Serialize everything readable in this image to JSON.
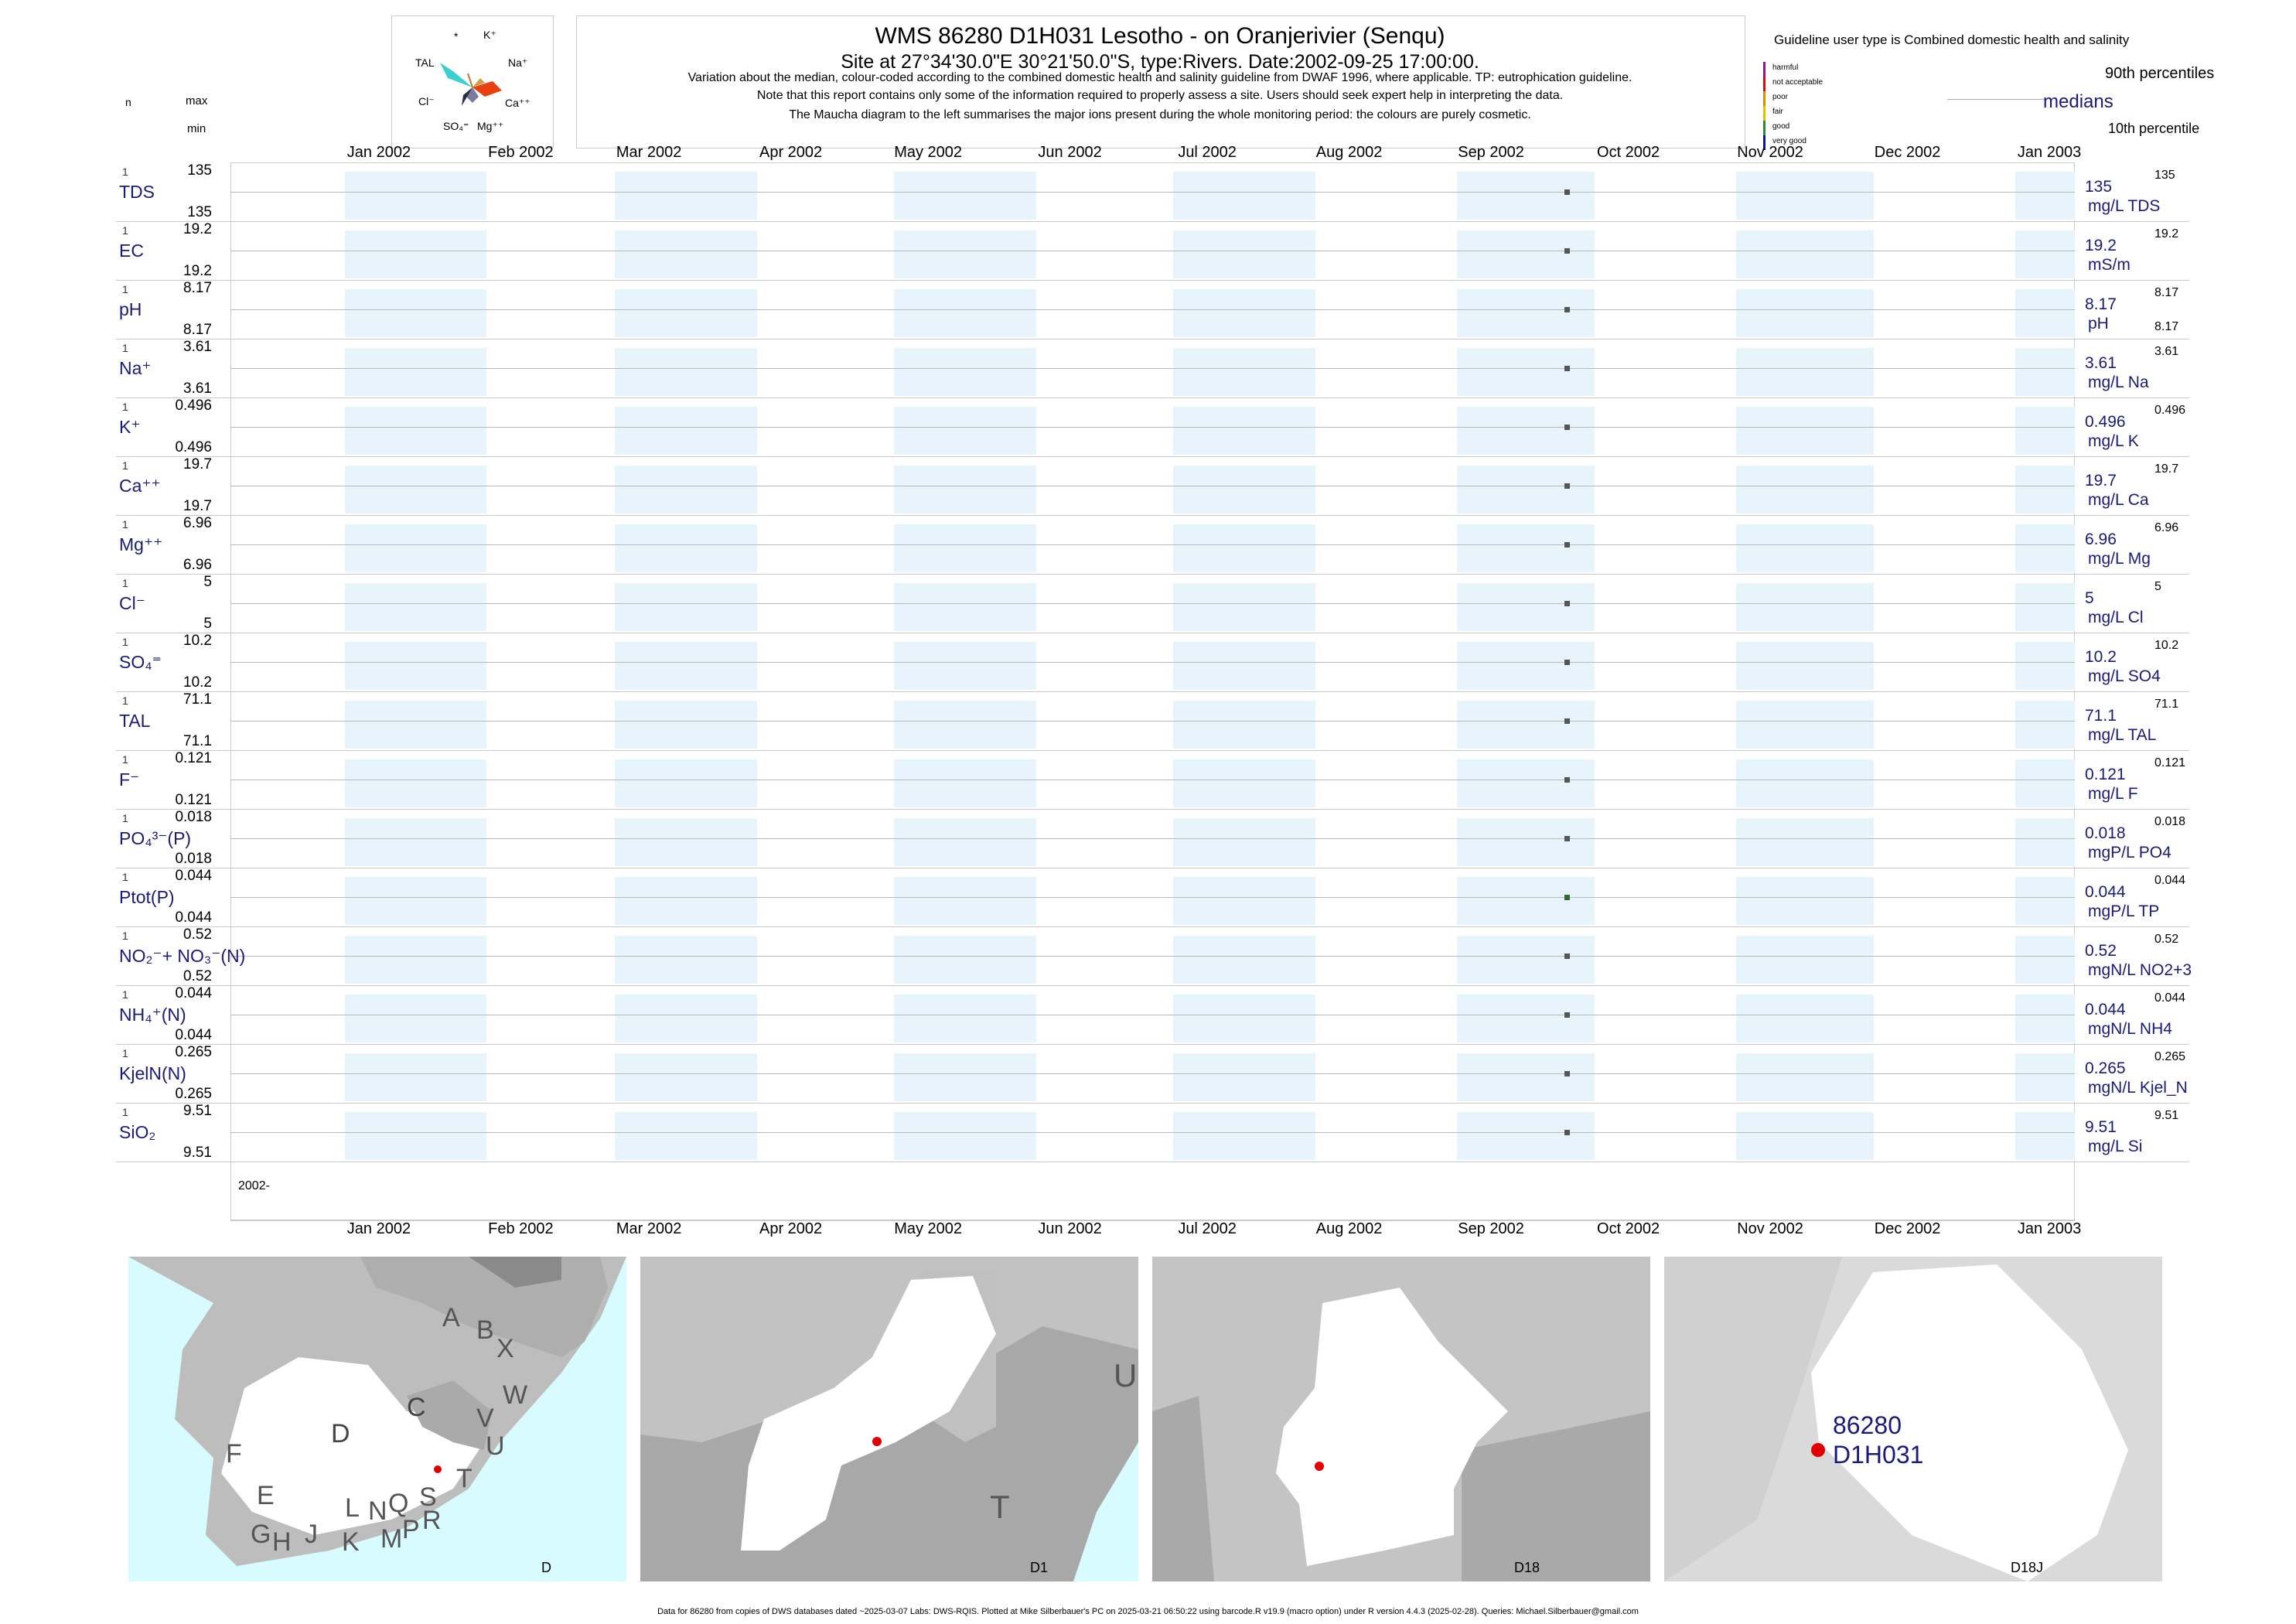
{
  "header": {
    "title": "WMS 86280 D1H031 Lesotho - on Oranjerivier (Senqu)",
    "subtitle": "Site at 27°34'30.0\"E 30°21'50.0\"S, type:Rivers. Date:2002-09-25 17:00:00.",
    "note1": "Variation about the median,  colour-coded according to the combined domestic health and salinity guideline from DWAF 1996, where applicable. TP: eutrophication guideline.",
    "note2": "Note that this report contains only some of the information required to properly assess a site. Users should seek expert help in interpreting the data.",
    "note3": "The Maucha diagram to the left summarises the major ions present during the whole monitoring period: the colours are purely cosmetic."
  },
  "maucha": {
    "labels": [
      "*",
      "K⁺",
      "TAL",
      "Na⁺",
      "Cl⁻",
      "Ca⁺⁺",
      "SO₄⁼",
      "Mg⁺⁺"
    ]
  },
  "left_header": {
    "n": "n",
    "max": "max",
    "min": "min"
  },
  "legend": {
    "guideline_title": "Guideline user type is Combined domestic health and salinity",
    "levels": [
      "harmful",
      "not acceptable",
      "poor",
      "fair",
      "good",
      "very good"
    ],
    "level_colors": [
      "#8b1a8b",
      "#d01010",
      "#e08a00",
      "#e6c000",
      "#2e8b2e",
      "#1010a0"
    ],
    "p90": "90th percentiles",
    "medians": "medians",
    "p10": "10th percentile"
  },
  "axis": {
    "months": [
      "Jan 2002",
      "Feb 2002",
      "Mar 2002",
      "Apr 2002",
      "May 2002",
      "Jun 2002",
      "Jul 2002",
      "Aug 2002",
      "Sep 2002",
      "Oct 2002",
      "Nov 2002",
      "Dec 2002",
      "Jan 2003"
    ],
    "year_label": "2002-"
  },
  "chart_data": {
    "type": "scatter",
    "x_dates": [
      "2002-09-25"
    ],
    "series": [
      {
        "name": "TDS",
        "label": "TDS",
        "n": "1",
        "max": "135",
        "min": "135",
        "median": "135",
        "unit": "mg/L TDS",
        "p90": "135",
        "p10": "",
        "color": "#555555"
      },
      {
        "name": "EC",
        "label": "EC",
        "n": "1",
        "max": "19.2",
        "min": "19.2",
        "median": "19.2",
        "unit": "mS/m",
        "p90": "19.2",
        "p10": "",
        "color": "#555555"
      },
      {
        "name": "pH",
        "label": "pH",
        "n": "1",
        "max": "8.17",
        "min": "8.17",
        "median": "8.17",
        "unit": "pH",
        "p90": "8.17",
        "p10": "8.17",
        "color": "#555555"
      },
      {
        "name": "Na",
        "label": "Na⁺",
        "n": "1",
        "max": "3.61",
        "min": "3.61",
        "median": "3.61",
        "unit": "mg/L Na",
        "p90": "3.61",
        "p10": "",
        "color": "#555555"
      },
      {
        "name": "K",
        "label": "K⁺",
        "n": "1",
        "max": "0.496",
        "min": "0.496",
        "median": "0.496",
        "unit": "mg/L K",
        "p90": "0.496",
        "p10": "",
        "color": "#555555"
      },
      {
        "name": "Ca",
        "label": "Ca⁺⁺",
        "n": "1",
        "max": "19.7",
        "min": "19.7",
        "median": "19.7",
        "unit": "mg/L Ca",
        "p90": "19.7",
        "p10": "",
        "color": "#555555"
      },
      {
        "name": "Mg",
        "label": "Mg⁺⁺",
        "n": "1",
        "max": "6.96",
        "min": "6.96",
        "median": "6.96",
        "unit": "mg/L Mg",
        "p90": "6.96",
        "p10": "",
        "color": "#555555"
      },
      {
        "name": "Cl",
        "label": "Cl⁻",
        "n": "1",
        "max": "5",
        "min": "5",
        "median": "5",
        "unit": "mg/L Cl",
        "p90": "5",
        "p10": "",
        "color": "#555555"
      },
      {
        "name": "SO4",
        "label": "SO₄⁼",
        "n": "1",
        "max": "10.2",
        "min": "10.2",
        "median": "10.2",
        "unit": "mg/L SO4",
        "p90": "10.2",
        "p10": "",
        "color": "#555555"
      },
      {
        "name": "TAL",
        "label": "TAL",
        "n": "1",
        "max": "71.1",
        "min": "71.1",
        "median": "71.1",
        "unit": "mg/L TAL",
        "p90": "71.1",
        "p10": "",
        "color": "#555555"
      },
      {
        "name": "F",
        "label": "F⁻",
        "n": "1",
        "max": "0.121",
        "min": "0.121",
        "median": "0.121",
        "unit": "mg/L F",
        "p90": "0.121",
        "p10": "",
        "color": "#555555"
      },
      {
        "name": "PO4",
        "label": "PO₄³⁻(P)",
        "n": "1",
        "max": "0.018",
        "min": "0.018",
        "median": "0.018",
        "unit": "mgP/L PO4",
        "p90": "0.018",
        "p10": "",
        "color": "#555555"
      },
      {
        "name": "TP",
        "label": "Ptot(P)",
        "n": "1",
        "max": "0.044",
        "min": "0.044",
        "median": "0.044",
        "unit": "mgP/L TP",
        "p90": "0.044",
        "p10": "",
        "color": "#2e6b2e"
      },
      {
        "name": "NO2+3",
        "label": "NO₂⁻+ NO₃⁻(N)",
        "n": "1",
        "max": "0.52",
        "min": "0.52",
        "median": "0.52",
        "unit": "mgN/L NO2+3",
        "p90": "0.52",
        "p10": "",
        "color": "#555555"
      },
      {
        "name": "NH4",
        "label": "NH₄⁺(N)",
        "n": "1",
        "max": "0.044",
        "min": "0.044",
        "median": "0.044",
        "unit": "mgN/L NH4",
        "p90": "0.044",
        "p10": "",
        "color": "#555555"
      },
      {
        "name": "KjelN",
        "label": "KjelN(N)",
        "n": "1",
        "max": "0.265",
        "min": "0.265",
        "median": "0.265",
        "unit": "mgN/L Kjel_N",
        "p90": "0.265",
        "p10": "",
        "color": "#555555"
      },
      {
        "name": "SiO2",
        "label": "SiO₂",
        "n": "1",
        "max": "9.51",
        "min": "9.51",
        "median": "9.51",
        "unit": "mg/L Si",
        "p90": "9.51",
        "p10": "",
        "color": "#555555"
      }
    ],
    "x_range": [
      "2001-12-01",
      "2003-01-15"
    ],
    "grid": true
  },
  "maps": {
    "panel1": {
      "label": "D",
      "letters": [
        "A",
        "B",
        "X",
        "W",
        "C",
        "V",
        "U",
        "T",
        "D",
        "F",
        "E",
        "G",
        "H",
        "J",
        "K",
        "L",
        "N",
        "M",
        "Q",
        "P",
        "S",
        "R"
      ]
    },
    "panel2": {
      "label": "D1",
      "letters": [
        "U",
        "T"
      ]
    },
    "panel3": {
      "label": "D18"
    },
    "panel4": {
      "label": "D18J",
      "site_id": "86280",
      "site_code": "D1H031"
    }
  },
  "footer": "Data for 86280 from copies of DWS databases dated ~2025-03-07 Labs: DWS-RQIS. Plotted at Mike Silberbauer's PC on 2025-03-21 06:50:22 using barcode.R v19.9 (macro option) under R version 4.4.3 (2025-02-28). Queries: Michael.Silberbauer@gmail.com"
}
